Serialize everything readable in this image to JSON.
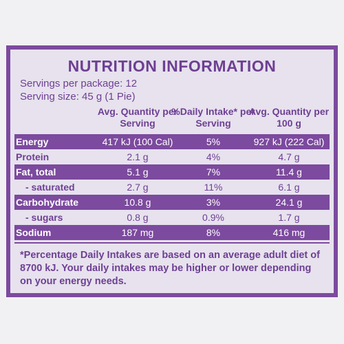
{
  "title": "NUTRITION INFORMATION",
  "servings_per_package": "Servings per package: 12",
  "serving_size": "Serving size: 45 g (1 Pie)",
  "headers": {
    "col1": "Avg. Quantity per Serving",
    "col2": "%Daily Intake* per Serving",
    "col3": "Avg. Quantity per 100 g"
  },
  "rows": [
    {
      "label": "Energy",
      "per_serving": "417 kJ (100 Cal)",
      "daily_intake": "5%",
      "per_100g": "927 kJ (222 Cal)"
    },
    {
      "label": "Protein",
      "per_serving": "2.1 g",
      "daily_intake": "4%",
      "per_100g": "4.7 g"
    },
    {
      "label": "Fat, total",
      "per_serving": "5.1 g",
      "daily_intake": "7%",
      "per_100g": "11.4 g"
    },
    {
      "label": "- saturated",
      "per_serving": "2.7 g",
      "daily_intake": "11%",
      "per_100g": "6.1 g"
    },
    {
      "label": "Carbohydrate",
      "per_serving": "10.8 g",
      "daily_intake": "3%",
      "per_100g": "24.1 g"
    },
    {
      "label": "- sugars",
      "per_serving": "0.8 g",
      "daily_intake": "0.9%",
      "per_100g": "1.7 g"
    },
    {
      "label": "Sodium",
      "per_serving": "187 mg",
      "daily_intake": "8%",
      "per_100g": "416 mg"
    }
  ],
  "footnote": "*Percentage Daily Intakes are based on an average adult diet of 8700 kJ. Your daily intakes may be higher or lower depending on your energy needs.",
  "colors": {
    "accent": "#7c4a9e",
    "panel": "#e7e2ee",
    "text": "#6e3f93"
  }
}
